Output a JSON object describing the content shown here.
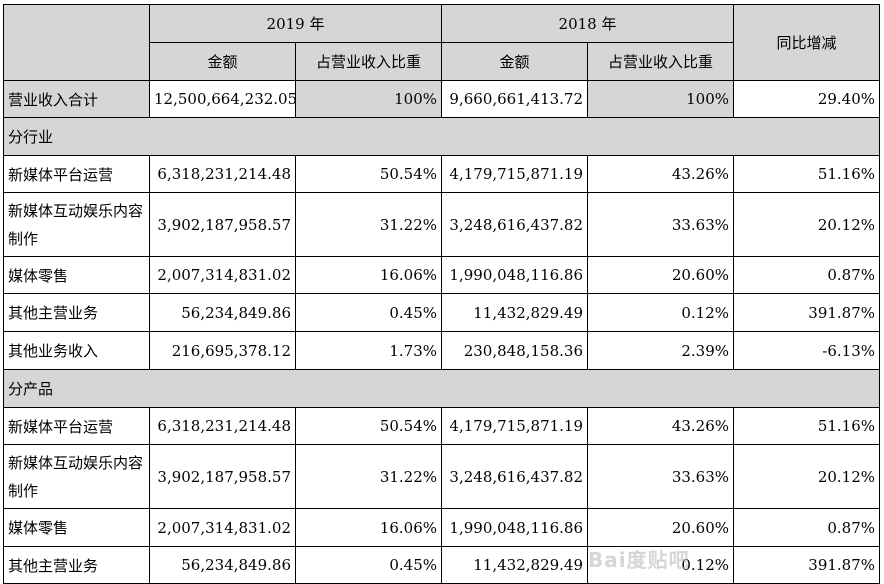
{
  "header": {
    "year_2019": "2019 年",
    "year_2018": "2018 年",
    "yoy": "同比增减",
    "amount_2019": "金额",
    "ratio_2019": "占营业收入比重",
    "amount_2018": "金额",
    "ratio_2018": "占营业收入比重"
  },
  "total": {
    "label": "营业收入合计",
    "amount_2019": "12,500,664,232.05",
    "ratio_2019": "100%",
    "amount_2018": "9,660,661,413.72",
    "ratio_2018": "100%",
    "yoy": "29.40%"
  },
  "section_industry": "分行业",
  "industry_rows": [
    {
      "label": "新媒体平台运营",
      "amount_2019": "6,318,231,214.48",
      "ratio_2019": "50.54%",
      "amount_2018": "4,179,715,871.19",
      "ratio_2018": "43.26%",
      "yoy": "51.16%"
    },
    {
      "label": "新媒体互动娱乐内容制作",
      "amount_2019": "3,902,187,958.57",
      "ratio_2019": "31.22%",
      "amount_2018": "3,248,616,437.82",
      "ratio_2018": "33.63%",
      "yoy": "20.12%"
    },
    {
      "label": "媒体零售",
      "amount_2019": "2,007,314,831.02",
      "ratio_2019": "16.06%",
      "amount_2018": "1,990,048,116.86",
      "ratio_2018": "20.60%",
      "yoy": "0.87%"
    },
    {
      "label": "其他主营业务",
      "amount_2019": "56,234,849.86",
      "ratio_2019": "0.45%",
      "amount_2018": "11,432,829.49",
      "ratio_2018": "0.12%",
      "yoy": "391.87%"
    },
    {
      "label": "其他业务收入",
      "amount_2019": "216,695,378.12",
      "ratio_2019": "1.73%",
      "amount_2018": "230,848,158.36",
      "ratio_2018": "2.39%",
      "yoy": "-6.13%"
    }
  ],
  "section_product": "分产品",
  "product_rows": [
    {
      "label": "新媒体平台运营",
      "amount_2019": "6,318,231,214.48",
      "ratio_2019": "50.54%",
      "amount_2018": "4,179,715,871.19",
      "ratio_2018": "43.26%",
      "yoy": "51.16%"
    },
    {
      "label": "新媒体互动娱乐内容制作",
      "amount_2019": "3,902,187,958.57",
      "ratio_2019": "31.22%",
      "amount_2018": "3,248,616,437.82",
      "ratio_2018": "33.63%",
      "yoy": "20.12%"
    },
    {
      "label": "媒体零售",
      "amount_2019": "2,007,314,831.02",
      "ratio_2019": "16.06%",
      "amount_2018": "1,990,048,116.86",
      "ratio_2018": "20.60%",
      "yoy": "0.87%"
    },
    {
      "label": "其他主营业务",
      "amount_2019": "56,234,849.86",
      "ratio_2019": "0.45%",
      "amount_2018": "11,432,829.49",
      "ratio_2018": "0.12%",
      "yoy": "391.87%"
    }
  ],
  "watermark": "Bai度贴吧"
}
